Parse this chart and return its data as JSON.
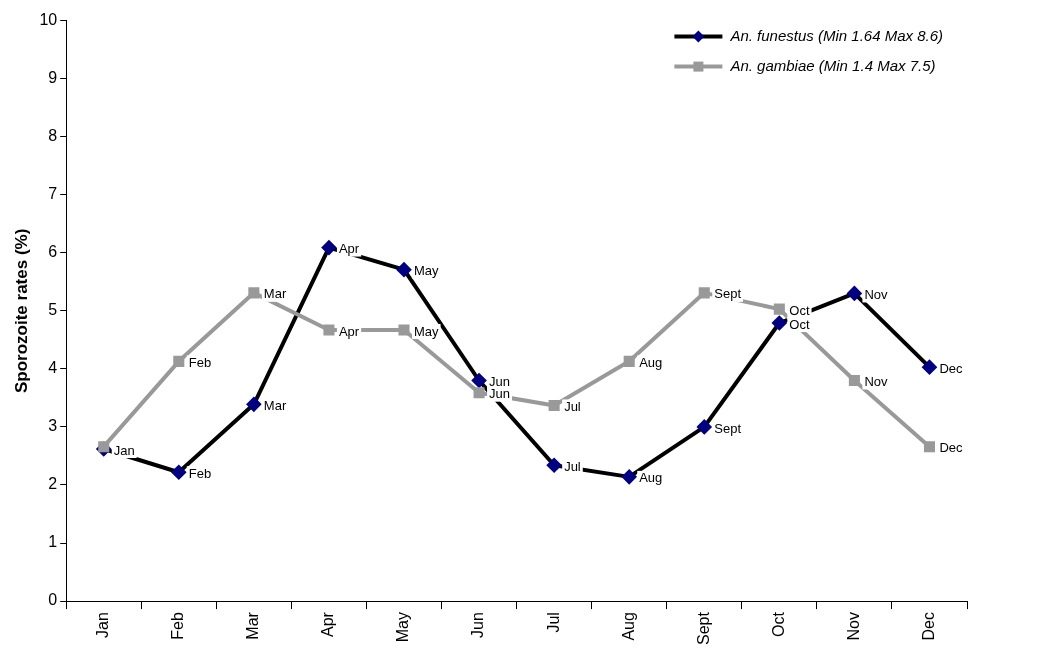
{
  "chart_data": {
    "type": "line",
    "ylabel": "Sporozoite rates (%)",
    "categories": [
      "Jan",
      "Feb",
      "Mar",
      "Apr",
      "May",
      "Jun",
      "Jul",
      "Aug",
      "Sept",
      "Oct",
      "Nov",
      "Dec"
    ],
    "series": [
      {
        "name": "An. funestus (Min 1.64 Max 8.6)",
        "color": "#000000",
        "marker": "diamond",
        "values": [
          2.62,
          2.22,
          3.39,
          6.09,
          5.71,
          3.8,
          2.34,
          2.14,
          3.0,
          4.79,
          5.3,
          4.03
        ],
        "value_labels": [
          "Jan",
          "Feb",
          "Mar",
          "Apr",
          "May",
          "Jun",
          "Jul",
          "Aug",
          "Sept",
          "Oct",
          "Nov",
          "Dec"
        ]
      },
      {
        "name": "An. gambiae (Min 1.4 Max 7.5)",
        "color": "#999999",
        "marker": "square",
        "values": [
          2.66,
          4.13,
          5.31,
          4.67,
          4.67,
          3.59,
          3.37,
          4.13,
          5.31,
          5.03,
          3.8,
          2.66
        ],
        "value_labels": [
          null,
          "Feb",
          "Mar",
          "Apr",
          "May",
          "Jun",
          "Jul",
          "Aug",
          "Sept",
          "Oct",
          "Nov",
          "Dec"
        ]
      }
    ],
    "ylim": [
      0,
      10
    ],
    "yticks": [
      0,
      1,
      2,
      3,
      4,
      5,
      6,
      7,
      8,
      9,
      10
    ],
    "grid": false,
    "legend": "top right"
  }
}
